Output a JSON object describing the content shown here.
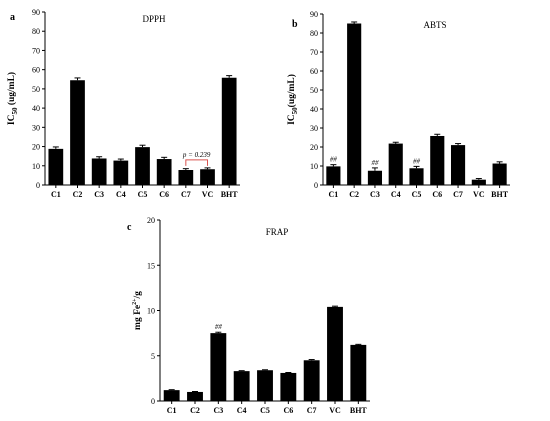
{
  "colors": {
    "bar": "#000000",
    "annotation_bracket": "#d9534f"
  },
  "chart_data": [
    {
      "type": "bar",
      "panel": "a",
      "title": "DPPH",
      "ylabel_main": "IC",
      "ylabel_sub": "50",
      "ylabel_rest": " (ug/mL)",
      "xlabel": "",
      "ylim": [
        0,
        90
      ],
      "yticks": [
        0,
        10,
        20,
        30,
        40,
        50,
        60,
        70,
        80,
        90
      ],
      "categories": [
        "C1",
        "C2",
        "C3",
        "C4",
        "C5",
        "C6",
        "C7",
        "VC",
        "BHT"
      ],
      "values": [
        18.8,
        54.5,
        13.8,
        12.7,
        19.7,
        13.5,
        7.8,
        8.2,
        55.8
      ],
      "errors": [
        1.0,
        1.2,
        0.9,
        0.8,
        1.0,
        0.9,
        0.7,
        0.7,
        1.1
      ],
      "markers": [
        "",
        "",
        "",
        "",
        "",
        "",
        "",
        "",
        ""
      ],
      "annotation": {
        "text": "p = 0.239",
        "between": [
          6,
          7
        ]
      }
    },
    {
      "type": "bar",
      "panel": "b",
      "title": "ABTS",
      "ylabel_main": "IC",
      "ylabel_sub": "50",
      "ylabel_rest": "(ug/mL)",
      "xlabel": "",
      "ylim": [
        0,
        90
      ],
      "yticks": [
        0,
        10,
        20,
        30,
        40,
        50,
        60,
        70,
        80,
        90
      ],
      "categories": [
        "C1",
        "C2",
        "C3",
        "C4",
        "C5",
        "C6",
        "C7",
        "VC",
        "BHT"
      ],
      "values": [
        9.8,
        85.0,
        7.5,
        21.8,
        8.8,
        25.8,
        21.0,
        2.8,
        11.3
      ],
      "errors": [
        0.9,
        0.8,
        1.5,
        0.7,
        1.0,
        0.9,
        0.8,
        0.6,
        0.9
      ],
      "markers": [
        "##",
        "",
        "##",
        "",
        "##",
        "",
        "",
        "",
        ""
      ]
    },
    {
      "type": "bar",
      "panel": "c",
      "title": "FRAP",
      "ylabel_main": "mg Fe",
      "ylabel_sup": "2+",
      "ylabel_rest": "/g",
      "xlabel": "",
      "ylim": [
        0,
        20
      ],
      "yticks": [
        0,
        5,
        10,
        15,
        20
      ],
      "categories": [
        "C1",
        "C2",
        "C3",
        "C4",
        "C5",
        "C6",
        "C7",
        "VC",
        "BHT"
      ],
      "values": [
        1.2,
        1.0,
        7.5,
        3.3,
        3.4,
        3.1,
        4.5,
        10.4,
        6.2
      ],
      "errors": [
        0.05,
        0.05,
        0.1,
        0.05,
        0.05,
        0.05,
        0.08,
        0.08,
        0.06
      ],
      "markers": [
        "",
        "",
        "##",
        "",
        "",
        "",
        "",
        "",
        ""
      ]
    }
  ]
}
